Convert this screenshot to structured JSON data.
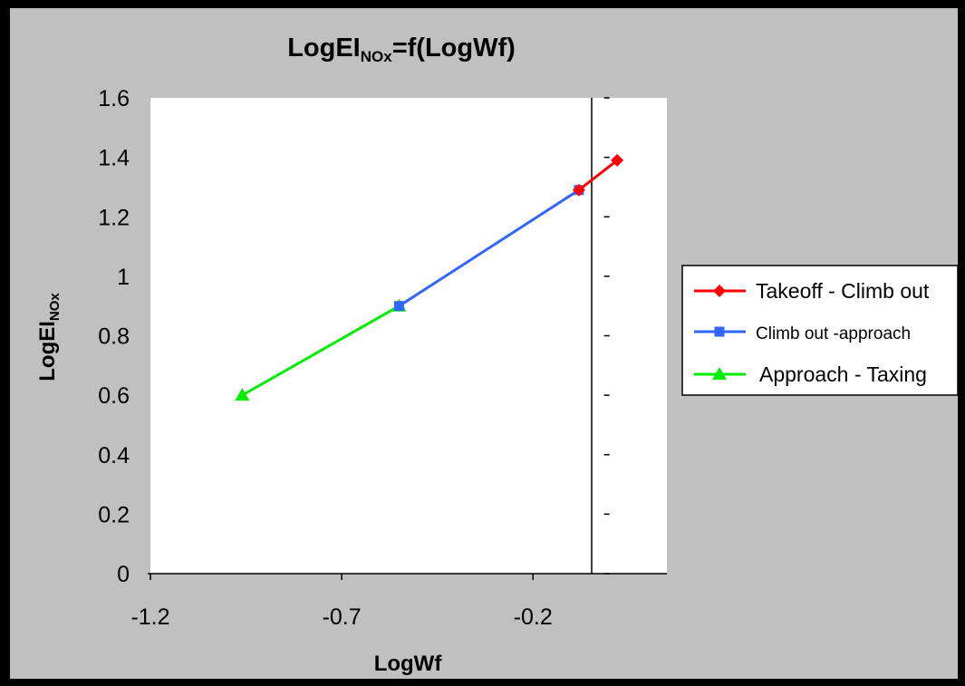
{
  "chart_data": {
    "type": "line",
    "title": "LogEI",
    "title_subscript": "NOx",
    "title_suffix": "=f(LogWf)",
    "xlabel": "LogWf",
    "ylabel": "LogEI",
    "ylabel_subscript": "NOx",
    "xlim": [
      -1.2,
      0.15
    ],
    "ylim": [
      0,
      1.6
    ],
    "x_ticks": [
      -1.2,
      -0.7,
      -0.2
    ],
    "x_tick_labels": [
      "-1.2",
      "-0.7",
      "-0.2"
    ],
    "y_ticks": [
      0,
      0.2,
      0.4,
      0.6,
      0.8,
      1,
      1.2,
      1.4,
      1.6
    ],
    "y_tick_labels": [
      "0",
      "0.2",
      "0.4",
      "0.6",
      "0.8",
      "1",
      "1.2",
      "1.4",
      "1.6"
    ],
    "y_axis_crosses_at_x": 0,
    "grid": false,
    "legend_position": "right",
    "series": [
      {
        "name": "Takeoff - Climb out",
        "marker": "diamond",
        "color": "#ff0000",
        "x": [
          -0.08,
          0.02
        ],
        "y": [
          1.29,
          1.39
        ]
      },
      {
        "name": "Climb out -approach",
        "marker": "square",
        "color": "#3366ff",
        "x": [
          -0.55,
          -0.08
        ],
        "y": [
          0.9,
          1.29
        ]
      },
      {
        "name": "Approach - Taxing",
        "marker": "triangle",
        "color": "#00ee00",
        "x": [
          -0.96,
          -0.55
        ],
        "y": [
          0.6,
          0.9
        ]
      }
    ],
    "colors": {
      "panel": "#c0c0c0",
      "plot_area": "#ffffff",
      "frame": "#000000"
    }
  }
}
